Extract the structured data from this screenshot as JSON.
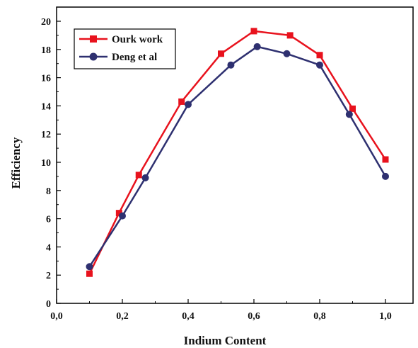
{
  "chart_data": {
    "type": "line",
    "xlabel": "Indium Content",
    "ylabel": "Efficiency",
    "xlim": [
      0.0,
      1.0
    ],
    "ylim": [
      0,
      20
    ],
    "x_ticks": [
      "0,0",
      "0,2",
      "0,4",
      "0,6",
      "0,8",
      "1,0"
    ],
    "y_ticks": [
      "0",
      "2",
      "4",
      "6",
      "8",
      "10",
      "12",
      "14",
      "16",
      "18",
      "20"
    ],
    "grid": false,
    "legend_position": "top-left",
    "series": [
      {
        "name": "Ourk work",
        "color": "#e8121d",
        "marker": "square",
        "x": [
          0.1,
          0.19,
          0.25,
          0.38,
          0.5,
          0.6,
          0.71,
          0.8,
          0.9,
          1.0
        ],
        "y": [
          2.1,
          6.4,
          9.1,
          14.3,
          17.7,
          19.3,
          19.0,
          17.6,
          13.8,
          10.2
        ]
      },
      {
        "name": "Deng et al",
        "color": "#2e3070",
        "marker": "circle",
        "x": [
          0.1,
          0.2,
          0.27,
          0.4,
          0.53,
          0.61,
          0.7,
          0.8,
          0.89,
          1.0
        ],
        "y": [
          2.6,
          6.2,
          8.9,
          14.1,
          16.9,
          18.2,
          17.7,
          16.9,
          13.4,
          9.0
        ]
      }
    ]
  }
}
